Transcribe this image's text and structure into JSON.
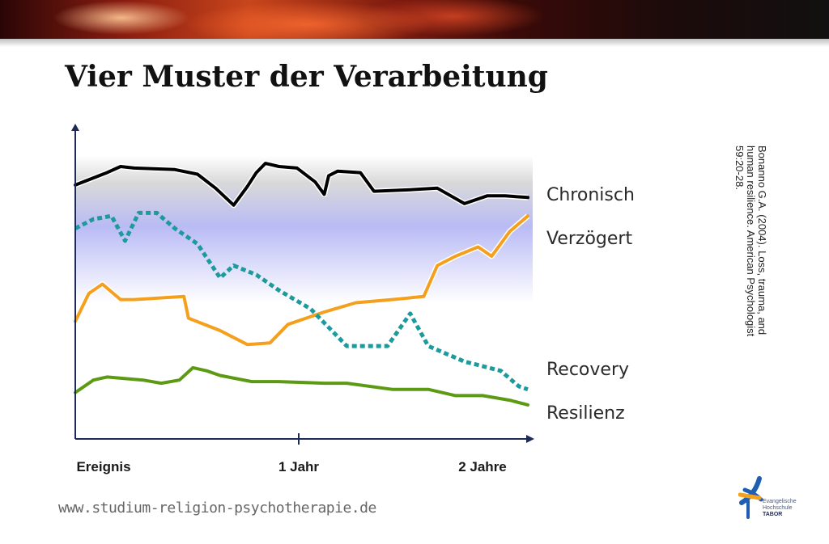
{
  "slide": {
    "title": "Vier Muster der Verarbeitung",
    "website": "www.studium-religion-psychotherapie.de",
    "citation": "Bonanno G.A. (2004). Loss, trauma, and human resilience. American Psychologist 59:20-28.",
    "logo": {
      "icon": "ehs-tabor-logo-icon",
      "line1": "Evangelische",
      "line2": "Hochschule",
      "line3": "TABOR",
      "colors": {
        "blue": "#1f5fb3",
        "orange": "#f4a21c"
      }
    }
  },
  "chart_data": {
    "type": "line",
    "x_ticks": [
      "Ereignis",
      "1 Jahr",
      "2 Jahre"
    ],
    "x_range_years": [
      0,
      2
    ],
    "y_axis_label": "",
    "band": {
      "upper_color": "#d9d9d9",
      "lower_color": "#b9bbf5"
    },
    "series": [
      {
        "name": "Chronisch",
        "color": "#000000",
        "dash": false,
        "points": [
          [
            0.0,
            8.2
          ],
          [
            0.07,
            8.6
          ],
          [
            0.1,
            8.8
          ],
          [
            0.13,
            8.75
          ],
          [
            0.22,
            8.7
          ],
          [
            0.27,
            8.55
          ],
          [
            0.31,
            8.1
          ],
          [
            0.35,
            7.55
          ],
          [
            0.38,
            8.15
          ],
          [
            0.4,
            8.6
          ],
          [
            0.42,
            8.9
          ],
          [
            0.45,
            8.8
          ],
          [
            0.49,
            8.75
          ],
          [
            0.53,
            8.3
          ],
          [
            0.55,
            7.9
          ],
          [
            0.56,
            8.5
          ],
          [
            0.58,
            8.65
          ],
          [
            0.63,
            8.6
          ],
          [
            0.66,
            8.0
          ],
          [
            0.74,
            8.05
          ],
          [
            0.8,
            8.1
          ],
          [
            0.86,
            7.6
          ],
          [
            0.91,
            7.85
          ],
          [
            0.95,
            7.85
          ],
          [
            1.0,
            7.8
          ]
        ]
      },
      {
        "name": "Verzögert",
        "color": "#f4a01e",
        "dash": false,
        "points": [
          [
            0.0,
            3.8
          ],
          [
            0.03,
            4.7
          ],
          [
            0.06,
            5.0
          ],
          [
            0.1,
            4.5
          ],
          [
            0.13,
            4.5
          ],
          [
            0.24,
            4.6
          ],
          [
            0.25,
            3.9
          ],
          [
            0.32,
            3.5
          ],
          [
            0.38,
            3.05
          ],
          [
            0.43,
            3.1
          ],
          [
            0.47,
            3.7
          ],
          [
            0.55,
            4.1
          ],
          [
            0.62,
            4.4
          ],
          [
            0.7,
            4.5
          ],
          [
            0.77,
            4.6
          ],
          [
            0.8,
            5.6
          ],
          [
            0.84,
            5.9
          ],
          [
            0.89,
            6.2
          ],
          [
            0.92,
            5.9
          ],
          [
            0.96,
            6.7
          ],
          [
            1.0,
            7.2
          ]
        ]
      },
      {
        "name": "Recovery",
        "color": "#1c9a9c",
        "dash": true,
        "points": [
          [
            0.0,
            6.8
          ],
          [
            0.04,
            7.1
          ],
          [
            0.08,
            7.2
          ],
          [
            0.11,
            6.4
          ],
          [
            0.14,
            7.3
          ],
          [
            0.18,
            7.3
          ],
          [
            0.22,
            6.8
          ],
          [
            0.27,
            6.3
          ],
          [
            0.32,
            5.2
          ],
          [
            0.35,
            5.6
          ],
          [
            0.4,
            5.3
          ],
          [
            0.45,
            4.8
          ],
          [
            0.52,
            4.2
          ],
          [
            0.6,
            3.0
          ],
          [
            0.69,
            3.0
          ],
          [
            0.74,
            4.05
          ],
          [
            0.78,
            3.0
          ],
          [
            0.86,
            2.5
          ],
          [
            0.94,
            2.2
          ],
          [
            0.98,
            1.7
          ],
          [
            1.0,
            1.6
          ]
        ]
      },
      {
        "name": "Resilienz",
        "color": "#5d9a14",
        "dash": false,
        "points": [
          [
            0.0,
            1.5
          ],
          [
            0.04,
            1.9
          ],
          [
            0.07,
            2.0
          ],
          [
            0.15,
            1.9
          ],
          [
            0.19,
            1.8
          ],
          [
            0.23,
            1.9
          ],
          [
            0.26,
            2.3
          ],
          [
            0.29,
            2.2
          ],
          [
            0.32,
            2.05
          ],
          [
            0.39,
            1.85
          ],
          [
            0.45,
            1.85
          ],
          [
            0.55,
            1.8
          ],
          [
            0.6,
            1.8
          ],
          [
            0.7,
            1.6
          ],
          [
            0.78,
            1.6
          ],
          [
            0.84,
            1.4
          ],
          [
            0.9,
            1.4
          ],
          [
            0.96,
            1.25
          ],
          [
            1.0,
            1.1
          ]
        ]
      }
    ]
  }
}
